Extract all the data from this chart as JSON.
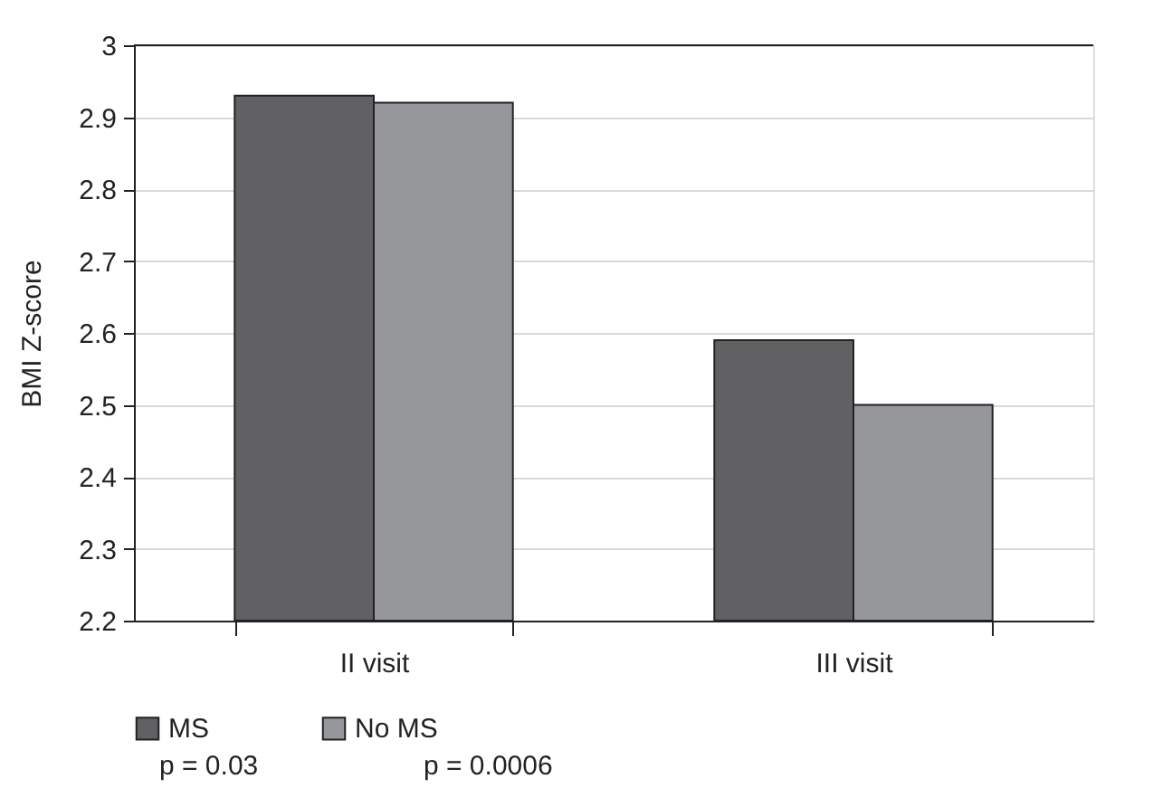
{
  "chart_data": {
    "type": "bar",
    "ylabel": "BMI Z-score",
    "categories": [
      "II visit",
      "III visit"
    ],
    "series": [
      {
        "name": "MS",
        "color": "#616163",
        "values": [
          2.93,
          2.59
        ]
      },
      {
        "name": "No MS",
        "color": "#96979a",
        "values": [
          2.92,
          2.5
        ]
      }
    ],
    "ylim": [
      2.2,
      3
    ],
    "yticks": [
      2.2,
      2.3,
      2.4,
      2.5,
      2.6,
      2.7,
      2.8,
      2.9,
      {
        "value": 3,
        "label": "3"
      }
    ],
    "grid": "y",
    "legend": "bottom left",
    "annotations": [
      "p = 0.03",
      "p = 0.0006"
    ]
  }
}
